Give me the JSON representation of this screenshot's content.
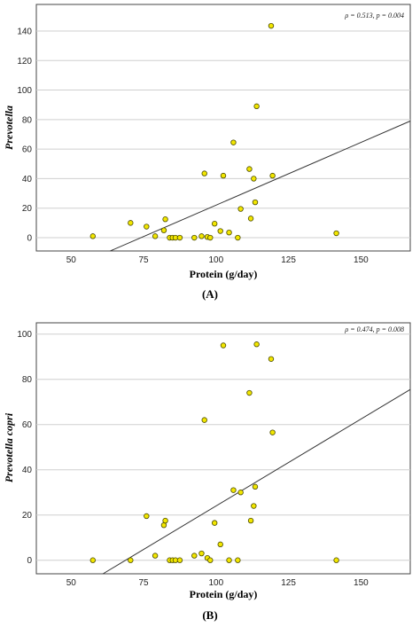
{
  "chart_data": [
    {
      "type": "scatter",
      "panel_label": "(A)",
      "xlabel": "Protein (g/day)",
      "ylabel": "Prevotella",
      "stat_text": "ρ = 0.513, p = 0.004",
      "xlim": [
        38,
        167
      ],
      "ylim": [
        -9,
        158
      ],
      "xticks": [
        50,
        75,
        100,
        125,
        150
      ],
      "yticks": [
        0,
        20,
        40,
        60,
        80,
        100,
        120,
        140
      ],
      "grid": "horizontal",
      "marker_color": "#f2e600",
      "fit_line": {
        "x": [
          63.5,
          167
        ],
        "y": [
          -9,
          79
        ]
      },
      "points": [
        {
          "x": 57.5,
          "y": 1
        },
        {
          "x": 70.5,
          "y": 10
        },
        {
          "x": 76,
          "y": 7.5
        },
        {
          "x": 79,
          "y": 1
        },
        {
          "x": 82,
          "y": 5
        },
        {
          "x": 82.5,
          "y": 12.5
        },
        {
          "x": 84,
          "y": 0
        },
        {
          "x": 85,
          "y": 0
        },
        {
          "x": 86,
          "y": 0
        },
        {
          "x": 87.5,
          "y": 0
        },
        {
          "x": 92.5,
          "y": 0
        },
        {
          "x": 95,
          "y": 1
        },
        {
          "x": 96,
          "y": 43.5
        },
        {
          "x": 97,
          "y": 0.5
        },
        {
          "x": 98,
          "y": 0
        },
        {
          "x": 99.5,
          "y": 9.5
        },
        {
          "x": 101.5,
          "y": 4.5
        },
        {
          "x": 102.5,
          "y": 42
        },
        {
          "x": 104.5,
          "y": 3.5
        },
        {
          "x": 106,
          "y": 64.5
        },
        {
          "x": 107.5,
          "y": 0
        },
        {
          "x": 108.5,
          "y": 19.5
        },
        {
          "x": 111.5,
          "y": 46.5
        },
        {
          "x": 112,
          "y": 13
        },
        {
          "x": 113,
          "y": 40
        },
        {
          "x": 113.5,
          "y": 24
        },
        {
          "x": 114,
          "y": 89
        },
        {
          "x": 119,
          "y": 143.5
        },
        {
          "x": 119.5,
          "y": 42
        },
        {
          "x": 141.5,
          "y": 3
        }
      ]
    },
    {
      "type": "scatter",
      "panel_label": "(B)",
      "xlabel": "Protein (g/day)",
      "ylabel": "Prevotella copri",
      "stat_text": "ρ = 0.474, p = 0.008",
      "xlim": [
        38,
        167
      ],
      "ylim": [
        -6,
        105
      ],
      "xticks": [
        50,
        75,
        100,
        125,
        150
      ],
      "yticks": [
        0,
        20,
        40,
        60,
        80,
        100
      ],
      "grid": "horizontal",
      "marker_color": "#f2e600",
      "fit_line": {
        "x": [
          61,
          167
        ],
        "y": [
          -6,
          75.5
        ]
      },
      "points": [
        {
          "x": 57.5,
          "y": 0
        },
        {
          "x": 70.5,
          "y": 0
        },
        {
          "x": 76,
          "y": 19.5
        },
        {
          "x": 79,
          "y": 2
        },
        {
          "x": 82,
          "y": 15.5
        },
        {
          "x": 82.5,
          "y": 17.5
        },
        {
          "x": 84,
          "y": 0
        },
        {
          "x": 85,
          "y": 0
        },
        {
          "x": 86,
          "y": 0
        },
        {
          "x": 87.5,
          "y": 0
        },
        {
          "x": 92.5,
          "y": 2
        },
        {
          "x": 95,
          "y": 3
        },
        {
          "x": 96,
          "y": 62
        },
        {
          "x": 97,
          "y": 1
        },
        {
          "x": 98,
          "y": 0
        },
        {
          "x": 99.5,
          "y": 16.5
        },
        {
          "x": 101.5,
          "y": 7
        },
        {
          "x": 102.5,
          "y": 95
        },
        {
          "x": 104.5,
          "y": 0
        },
        {
          "x": 106,
          "y": 31
        },
        {
          "x": 107.5,
          "y": 0
        },
        {
          "x": 108.5,
          "y": 30
        },
        {
          "x": 111.5,
          "y": 74
        },
        {
          "x": 112,
          "y": 17.5
        },
        {
          "x": 113,
          "y": 24
        },
        {
          "x": 113.5,
          "y": 32.5
        },
        {
          "x": 114,
          "y": 95.5
        },
        {
          "x": 119,
          "y": 89
        },
        {
          "x": 119.5,
          "y": 56.5
        },
        {
          "x": 141.5,
          "y": 0
        }
      ]
    }
  ]
}
